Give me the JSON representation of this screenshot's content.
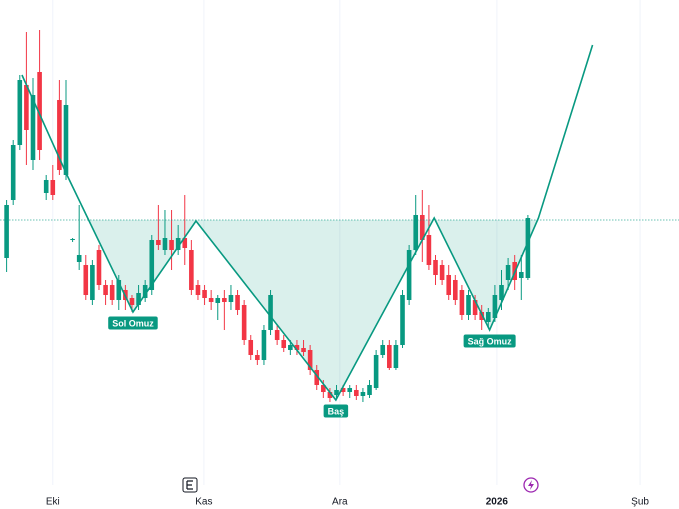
{
  "chart_data": {
    "type": "candlestick",
    "xlim": [
      -1,
      101.9
    ],
    "xticks": [
      {
        "value": 7,
        "label": "Eki"
      },
      {
        "value": 29.9,
        "label": "Kas"
      },
      {
        "value": 50.5,
        "label": "Ara"
      },
      {
        "value": 74.3,
        "label": "2026"
      },
      {
        "value": 96,
        "label": "Şub"
      }
    ],
    "ylim": [
      15,
      500
    ],
    "up_color": "#089981",
    "down_color": "#f23645",
    "open": [
      242,
      300,
      355,
      415,
      340,
      428,
      307,
      320,
      400,
      325,
      260,
      238,
      235,
      200,
      250,
      215,
      215,
      200,
      210,
      202,
      195,
      202,
      210,
      260,
      250,
      260,
      250,
      262,
      250,
      215,
      210,
      202,
      197,
      202,
      198,
      205,
      195,
      160,
      145,
      140,
      170,
      170,
      160,
      150,
      155,
      152,
      150,
      130,
      115,
      108,
      105,
      112,
      108,
      110,
      104,
      105,
      112,
      145,
      155,
      132,
      155,
      200,
      250,
      285,
      265,
      240,
      235,
      225,
      220,
      210,
      185,
      200,
      188,
      178,
      182,
      200,
      220,
      238,
      222,
      222
    ],
    "high": [
      300,
      360,
      425,
      468,
      422,
      470,
      325,
      335,
      420,
      420,
      262,
      295,
      245,
      240,
      255,
      220,
      220,
      225,
      215,
      205,
      215,
      220,
      265,
      295,
      290,
      290,
      275,
      305,
      260,
      220,
      215,
      210,
      205,
      210,
      215,
      210,
      200,
      165,
      150,
      175,
      210,
      175,
      165,
      160,
      160,
      160,
      155,
      135,
      120,
      112,
      115,
      115,
      115,
      115,
      112,
      120,
      150,
      160,
      160,
      160,
      210,
      255,
      305,
      310,
      295,
      245,
      240,
      235,
      225,
      215,
      210,
      205,
      195,
      192,
      215,
      230,
      242,
      245,
      245,
      285
    ],
    "low": [
      228,
      295,
      350,
      335,
      330,
      340,
      300,
      300,
      325,
      320,
      258,
      230,
      200,
      195,
      210,
      195,
      195,
      190,
      190,
      188,
      190,
      198,
      205,
      250,
      245,
      230,
      245,
      235,
      205,
      200,
      195,
      190,
      180,
      170,
      190,
      185,
      155,
      140,
      135,
      135,
      165,
      155,
      148,
      145,
      145,
      144,
      125,
      110,
      102,
      98,
      102,
      104,
      102,
      100,
      98,
      102,
      110,
      142,
      130,
      130,
      152,
      195,
      245,
      238,
      230,
      215,
      215,
      200,
      195,
      180,
      180,
      180,
      170,
      172,
      178,
      190,
      210,
      210,
      200,
      220
    ],
    "close": [
      295,
      355,
      420,
      370,
      405,
      350,
      320,
      305,
      330,
      395,
      261,
      245,
      205,
      235,
      215,
      205,
      200,
      220,
      200,
      195,
      207,
      215,
      260,
      255,
      262,
      250,
      262,
      252,
      210,
      205,
      202,
      198,
      202,
      198,
      205,
      190,
      160,
      145,
      140,
      170,
      205,
      160,
      152,
      155,
      150,
      148,
      130,
      115,
      108,
      102,
      110,
      108,
      112,
      104,
      108,
      115,
      145,
      155,
      132,
      155,
      205,
      250,
      285,
      260,
      235,
      225,
      220,
      205,
      200,
      185,
      205,
      185,
      180,
      188,
      205,
      215,
      235,
      220,
      228,
      282
    ],
    "pattern": {
      "color": "#089981",
      "x": [
        2.33,
        9.15,
        19.15,
        28.7,
        49.9,
        64.8,
        73.2,
        80.6,
        88.8
      ],
      "y": [
        425,
        325,
        188,
        279,
        100,
        282,
        170,
        282,
        455
      ]
    },
    "neckline": 280,
    "annotations": [
      "Sol Omuz",
      "Baş",
      "Sağ Omuz"
    ]
  }
}
